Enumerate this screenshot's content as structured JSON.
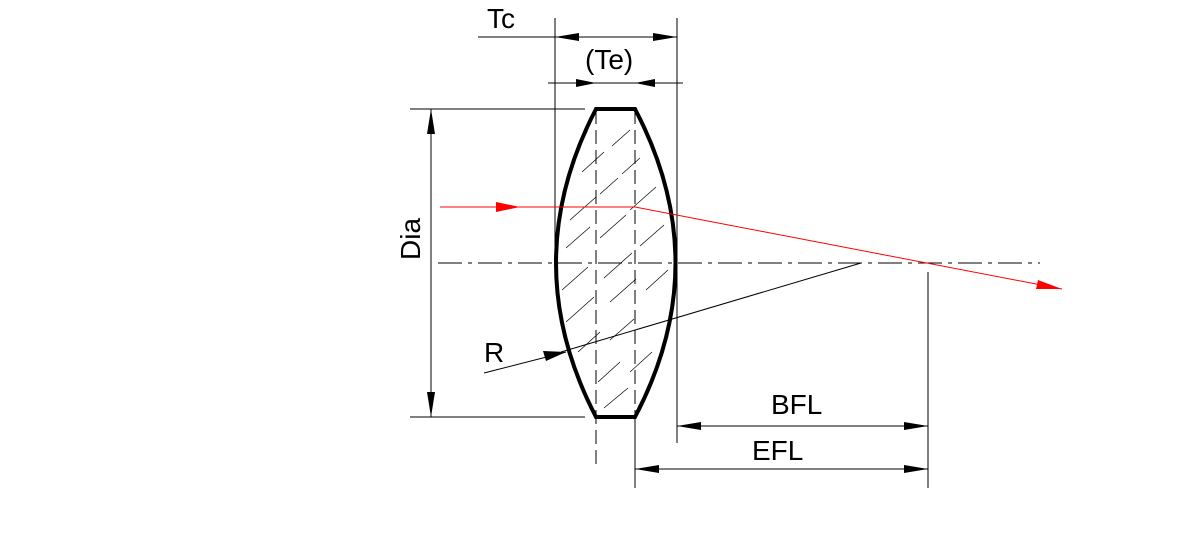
{
  "labels": {
    "tc": "Tc",
    "te": "(Te)",
    "dia": "Dia",
    "r": "R",
    "bfl": "BFL",
    "efl": "EFL"
  },
  "colors": {
    "line": "#000000",
    "ray": "#ff0000",
    "background": "#ffffff"
  }
}
